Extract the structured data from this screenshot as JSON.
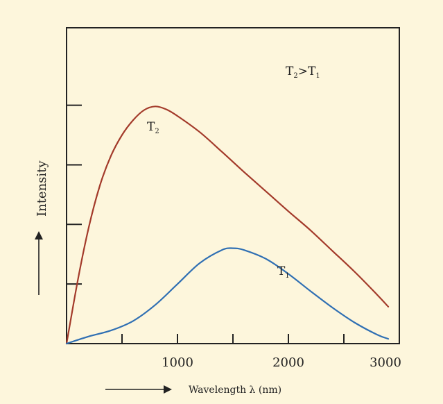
{
  "colors": {
    "background": "#fdf6dc",
    "axis": "#222222",
    "series_t2": "#a33a2a",
    "series_t1": "#2f6fb3"
  },
  "chart_data": {
    "type": "line",
    "xlabel": "Wavelength λ (nm)",
    "ylabel": "Intensity",
    "x_ticks": [
      1000,
      2000,
      3000
    ],
    "x_minor_ticks": [
      500,
      1000,
      1500,
      2000,
      2500
    ],
    "y_minor_ticks": [
      1,
      2,
      3,
      4
    ],
    "xlim": [
      0,
      3000
    ],
    "ylim": [
      0,
      5.3
    ],
    "grid": false,
    "annotation": {
      "main": "T",
      "sub_a": "2",
      "sep": ">",
      "tail": "T",
      "sub_b": "1"
    },
    "series": [
      {
        "name": "T2",
        "label_main": "T",
        "label_sub": "2",
        "x": [
          0,
          100,
          200,
          300,
          400,
          500,
          600,
          700,
          800,
          900,
          1000,
          1200,
          1400,
          1600,
          1800,
          2000,
          2200,
          2400,
          2600,
          2800,
          2900
        ],
        "y": [
          0,
          1.05,
          1.95,
          2.65,
          3.15,
          3.5,
          3.75,
          3.92,
          3.98,
          3.93,
          3.82,
          3.55,
          3.22,
          2.88,
          2.55,
          2.22,
          1.9,
          1.55,
          1.2,
          0.82,
          0.62
        ]
      },
      {
        "name": "T1",
        "label_main": "T",
        "label_sub": "1",
        "x": [
          0,
          200,
          400,
          600,
          800,
          1000,
          1200,
          1400,
          1500,
          1600,
          1800,
          2000,
          2200,
          2400,
          2600,
          2800,
          2900
        ],
        "y": [
          0,
          0.12,
          0.22,
          0.38,
          0.65,
          1.0,
          1.35,
          1.57,
          1.6,
          1.57,
          1.42,
          1.17,
          0.88,
          0.6,
          0.35,
          0.15,
          0.08
        ]
      }
    ]
  }
}
